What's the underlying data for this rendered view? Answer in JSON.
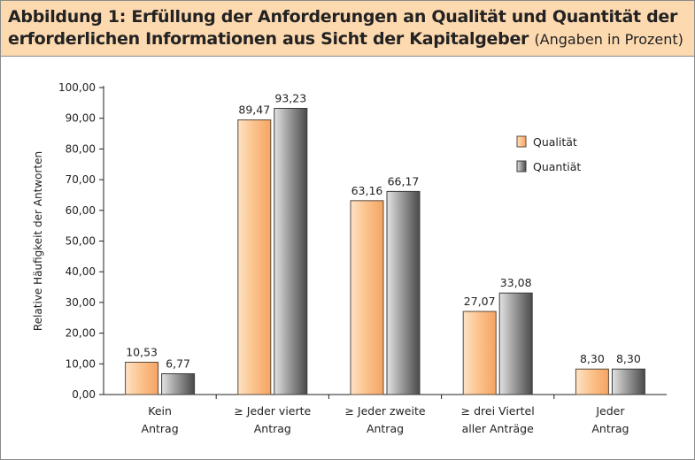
{
  "header": {
    "title_line1": "Abbildung 1: Erfüllung der Anforderungen an Qualität und Quantität der",
    "title_line2": "erforderlichen Informationen aus Sicht der Kapitalgeber",
    "subtitle": "(Angaben in Prozent)"
  },
  "chart_data": {
    "type": "bar",
    "title": "Abbildung 1: Erfüllung der Anforderungen an Qualität und Quantität der erforderlichen Informationen aus Sicht der Kapitalgeber",
    "ylabel": "Relative Häufigkeit der Antworten",
    "xlabel": "",
    "ylim": [
      0,
      100
    ],
    "yticks": [
      0,
      10,
      20,
      30,
      40,
      50,
      60,
      70,
      80,
      90,
      100
    ],
    "ytick_labels": [
      "0,00",
      "10,00",
      "20,00",
      "30,00",
      "40,00",
      "50,00",
      "60,00",
      "70,00",
      "80,00",
      "90,00",
      "100,00"
    ],
    "categories": [
      [
        "Kein",
        "Antrag"
      ],
      [
        "≥ Jeder vierte",
        "Antrag"
      ],
      [
        "≥ Jeder zweite",
        "Antrag"
      ],
      [
        "≥ drei Viertel",
        "aller Anträge"
      ],
      [
        "Jeder",
        "Antrag"
      ]
    ],
    "series": [
      {
        "name": "Qualität",
        "values": [
          10.53,
          89.47,
          63.16,
          27.07,
          8.3
        ],
        "labels": [
          "10,53",
          "89,47",
          "63,16",
          "27,07",
          "8,30"
        ],
        "color": "#fbbf87"
      },
      {
        "name": "Quantiät",
        "values": [
          6.77,
          93.23,
          66.17,
          33.08,
          8.3
        ],
        "labels": [
          "6,77",
          "93,23",
          "66,17",
          "33,08",
          "8,30"
        ],
        "color": "#8c8c8c"
      }
    ],
    "legend_position": "top-right",
    "grid": false
  }
}
